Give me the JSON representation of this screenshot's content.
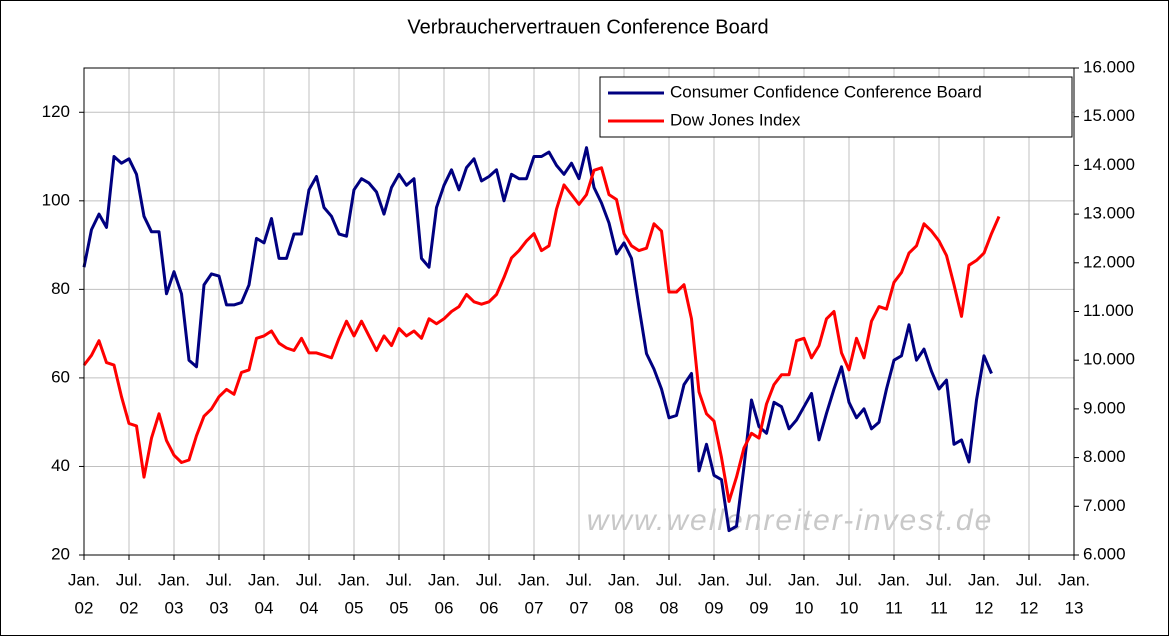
{
  "chart_data": {
    "type": "line",
    "title": "Verbrauchervertrauen Conference Board",
    "watermark": "www.wellenreiter-invest.de",
    "x": [
      "2002-01",
      "2002-02",
      "2002-03",
      "2002-04",
      "2002-05",
      "2002-06",
      "2002-07",
      "2002-08",
      "2002-09",
      "2002-10",
      "2002-11",
      "2002-12",
      "2003-01",
      "2003-02",
      "2003-03",
      "2003-04",
      "2003-05",
      "2003-06",
      "2003-07",
      "2003-08",
      "2003-09",
      "2003-10",
      "2003-11",
      "2003-12",
      "2004-01",
      "2004-02",
      "2004-03",
      "2004-04",
      "2004-05",
      "2004-06",
      "2004-07",
      "2004-08",
      "2004-09",
      "2004-10",
      "2004-11",
      "2004-12",
      "2005-01",
      "2005-02",
      "2005-03",
      "2005-04",
      "2005-05",
      "2005-06",
      "2005-07",
      "2005-08",
      "2005-09",
      "2005-10",
      "2005-11",
      "2005-12",
      "2006-01",
      "2006-02",
      "2006-03",
      "2006-04",
      "2006-05",
      "2006-06",
      "2006-07",
      "2006-08",
      "2006-09",
      "2006-10",
      "2006-11",
      "2006-12",
      "2007-01",
      "2007-02",
      "2007-03",
      "2007-04",
      "2007-05",
      "2007-06",
      "2007-07",
      "2007-08",
      "2007-09",
      "2007-10",
      "2007-11",
      "2007-12",
      "2008-01",
      "2008-02",
      "2008-03",
      "2008-04",
      "2008-05",
      "2008-06",
      "2008-07",
      "2008-08",
      "2008-09",
      "2008-10",
      "2008-11",
      "2008-12",
      "2009-01",
      "2009-02",
      "2009-03",
      "2009-04",
      "2009-05",
      "2009-06",
      "2009-07",
      "2009-08",
      "2009-09",
      "2009-10",
      "2009-11",
      "2009-12",
      "2010-01",
      "2010-02",
      "2010-03",
      "2010-04",
      "2010-05",
      "2010-06",
      "2010-07",
      "2010-08",
      "2010-09",
      "2010-10",
      "2010-11",
      "2010-12",
      "2011-01",
      "2011-02",
      "2011-03",
      "2011-04",
      "2011-05",
      "2011-06",
      "2011-07",
      "2011-08",
      "2011-09",
      "2011-10",
      "2011-11",
      "2011-12",
      "2012-01",
      "2012-02",
      "2012-03"
    ],
    "series": [
      {
        "name": "Consumer Confidence Conference Board",
        "color": "#000080",
        "axis": "y",
        "values": [
          85,
          93.5,
          97,
          94,
          110,
          108.5,
          109.5,
          106,
          96.5,
          93,
          93,
          79,
          84,
          79,
          64,
          62.5,
          81,
          83.5,
          83,
          76.5,
          76.5,
          77,
          81,
          91.5,
          90.5,
          96,
          87,
          87,
          92.5,
          92.5,
          102.5,
          105.5,
          98.5,
          96.5,
          92.5,
          92,
          102.5,
          105,
          104,
          102,
          97,
          103,
          106,
          103.5,
          105,
          87,
          85,
          98.5,
          103.5,
          107,
          102.5,
          107.5,
          109.5,
          104.5,
          105.5,
          107,
          100,
          106,
          105,
          105,
          110,
          110,
          111,
          108,
          106,
          108.5,
          105,
          112,
          103,
          99.5,
          95,
          88,
          90.5,
          87,
          76,
          65.5,
          62,
          57.5,
          51,
          51.5,
          58.5,
          61,
          39,
          45,
          38,
          37,
          25.5,
          26.5,
          40,
          55,
          49,
          47.5,
          54.5,
          53.5,
          48.5,
          50.5,
          53.5,
          56.5,
          46,
          52,
          57.5,
          62.5,
          54.5,
          51,
          53,
          48.5,
          50,
          57.5,
          64,
          65,
          72,
          64,
          66.5,
          61.5,
          57.5,
          59.5,
          45,
          46,
          41,
          55,
          65,
          61,
          null
        ]
      },
      {
        "name": "Dow Jones Index",
        "color": "#ff0000",
        "axis": "y2",
        "values": [
          9900,
          10100,
          10400,
          9950,
          9900,
          9250,
          8700,
          8650,
          7600,
          8400,
          8900,
          8350,
          8050,
          7900,
          7950,
          8450,
          8850,
          9000,
          9250,
          9400,
          9300,
          9750,
          9800,
          10450,
          10500,
          10600,
          10350,
          10250,
          10200,
          10450,
          10150,
          10150,
          10100,
          10050,
          10450,
          10800,
          10500,
          10800,
          10500,
          10200,
          10500,
          10300,
          10650,
          10500,
          10600,
          10450,
          10850,
          10750,
          10850,
          11000,
          11100,
          11350,
          11200,
          11150,
          11200,
          11350,
          11700,
          12100,
          12250,
          12450,
          12600,
          12250,
          12350,
          13100,
          13600,
          13400,
          13200,
          13400,
          13900,
          13950,
          13400,
          13300,
          12600,
          12350,
          12250,
          12300,
          12800,
          12650,
          11400,
          11400,
          11550,
          10850,
          9350,
          8900,
          8750,
          8000,
          7100,
          7600,
          8200,
          8500,
          8400,
          9100,
          9500,
          9700,
          9700,
          10400,
          10450,
          10050,
          10300,
          10850,
          11000,
          10150,
          9800,
          10450,
          10050,
          10800,
          11100,
          11050,
          11600,
          11800,
          12200,
          12350,
          12800,
          12650,
          12450,
          12150,
          11550,
          10900,
          11950,
          12050,
          12200,
          12600,
          12950
        ]
      }
    ],
    "xlim": [
      "2002-01",
      "2013-01"
    ],
    "xticks": [
      {
        "value": "2002-01",
        "label": [
          "Jan.",
          "02"
        ]
      },
      {
        "value": "2002-07",
        "label": [
          "Jul.",
          "02"
        ]
      },
      {
        "value": "2003-01",
        "label": [
          "Jan.",
          "03"
        ]
      },
      {
        "value": "2003-07",
        "label": [
          "Jul.",
          "03"
        ]
      },
      {
        "value": "2004-01",
        "label": [
          "Jan.",
          "04"
        ]
      },
      {
        "value": "2004-07",
        "label": [
          "Jul.",
          "04"
        ]
      },
      {
        "value": "2005-01",
        "label": [
          "Jan.",
          "05"
        ]
      },
      {
        "value": "2005-07",
        "label": [
          "Jul.",
          "05"
        ]
      },
      {
        "value": "2006-01",
        "label": [
          "Jan.",
          "06"
        ]
      },
      {
        "value": "2006-07",
        "label": [
          "Jul.",
          "06"
        ]
      },
      {
        "value": "2007-01",
        "label": [
          "Jan.",
          "07"
        ]
      },
      {
        "value": "2007-07",
        "label": [
          "Jul.",
          "07"
        ]
      },
      {
        "value": "2008-01",
        "label": [
          "Jan.",
          "08"
        ]
      },
      {
        "value": "2008-07",
        "label": [
          "Jul.",
          "08"
        ]
      },
      {
        "value": "2009-01",
        "label": [
          "Jan.",
          "09"
        ]
      },
      {
        "value": "2009-07",
        "label": [
          "Jul.",
          "09"
        ]
      },
      {
        "value": "2010-01",
        "label": [
          "Jan.",
          "10"
        ]
      },
      {
        "value": "2010-07",
        "label": [
          "Jul.",
          "10"
        ]
      },
      {
        "value": "2011-01",
        "label": [
          "Jan.",
          "11"
        ]
      },
      {
        "value": "2011-07",
        "label": [
          "Jul.",
          "11"
        ]
      },
      {
        "value": "2012-01",
        "label": [
          "Jan.",
          "12"
        ]
      },
      {
        "value": "2012-07",
        "label": [
          "Jul.",
          "12"
        ]
      },
      {
        "value": "2013-01",
        "label": [
          "Jan.",
          "13"
        ]
      }
    ],
    "ylim": [
      20,
      130
    ],
    "yticks": [
      20,
      40,
      60,
      80,
      100,
      120
    ],
    "y2lim": [
      6000,
      16000
    ],
    "y2ticks": [
      {
        "value": 6000,
        "label": "6.000"
      },
      {
        "value": 7000,
        "label": "7.000"
      },
      {
        "value": 8000,
        "label": "8.000"
      },
      {
        "value": 9000,
        "label": "9.000"
      },
      {
        "value": 10000,
        "label": "10.000"
      },
      {
        "value": 11000,
        "label": "11.000"
      },
      {
        "value": 12000,
        "label": "12.000"
      },
      {
        "value": 13000,
        "label": "13.000"
      },
      {
        "value": 14000,
        "label": "14.000"
      },
      {
        "value": 15000,
        "label": "15.000"
      },
      {
        "value": 16000,
        "label": "16.000"
      }
    ],
    "grid": true,
    "legend": "top-right"
  }
}
